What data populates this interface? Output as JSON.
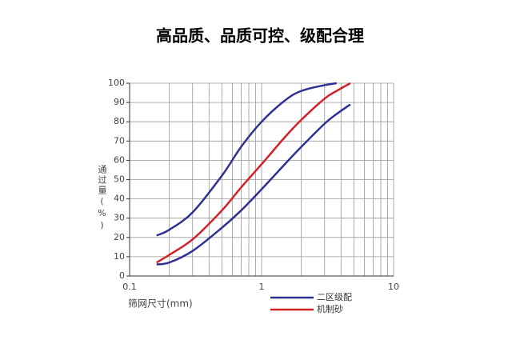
{
  "chart_data": {
    "type": "line",
    "title": "高品质、品质可控、级配合理",
    "x_label": "筛网尺寸(mm)",
    "y_label": "通过量(%)",
    "xscale": "log",
    "xlim": [
      0.1,
      10
    ],
    "xticks": [
      0.1,
      1,
      10
    ],
    "ylim": [
      0,
      100
    ],
    "yticks": [
      0,
      10,
      20,
      30,
      40,
      50,
      60,
      70,
      80,
      90,
      100
    ],
    "grid": true,
    "x": [
      0.16,
      0.2,
      0.3,
      0.5,
      0.7,
      1,
      1.5,
      2,
      3,
      3.7,
      4.7
    ],
    "series": [
      {
        "name": "二区级配",
        "color": "#2e3192",
        "upper": [
          21,
          24,
          33,
          52,
          67,
          80,
          91,
          96,
          99,
          100,
          null
        ],
        "lower": [
          6,
          7,
          13,
          25,
          34,
          45,
          58,
          67,
          79,
          84,
          89
        ]
      },
      {
        "name": "机制砂",
        "color": "#d42027",
        "values": [
          7,
          11,
          19,
          34,
          46,
          58,
          72,
          81,
          92,
          96,
          100
        ]
      }
    ]
  }
}
